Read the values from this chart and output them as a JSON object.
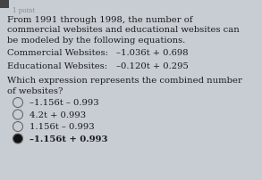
{
  "bg_color": "#c8cdd4",
  "text_color": "#1a1a1a",
  "header": "1 point",
  "header_color": "#888888",
  "corner_box_color": "#444444",
  "para1_lines": [
    "From 1991 through 1998, the number of",
    "commercial websites and educational websites can",
    "be modeled by the following equations."
  ],
  "label_commercial": "Commercial Websites:",
  "eq_commercial": "–1.036t + 0.698",
  "label_educational": "Educational Websites:",
  "eq_educational": "–0.120t + 0.295",
  "question_lines": [
    "Which expression represents the combined number",
    "of websites?"
  ],
  "options": [
    "–1.156t – 0.993",
    "4.2t + 0.993",
    "1.156t – 0.993",
    "–1.156t + 0.993"
  ],
  "correct_index": 3,
  "radio_color": "#666666",
  "correct_fill_color": "#111111",
  "font_size_main": 7.2,
  "font_size_header": 5.0
}
